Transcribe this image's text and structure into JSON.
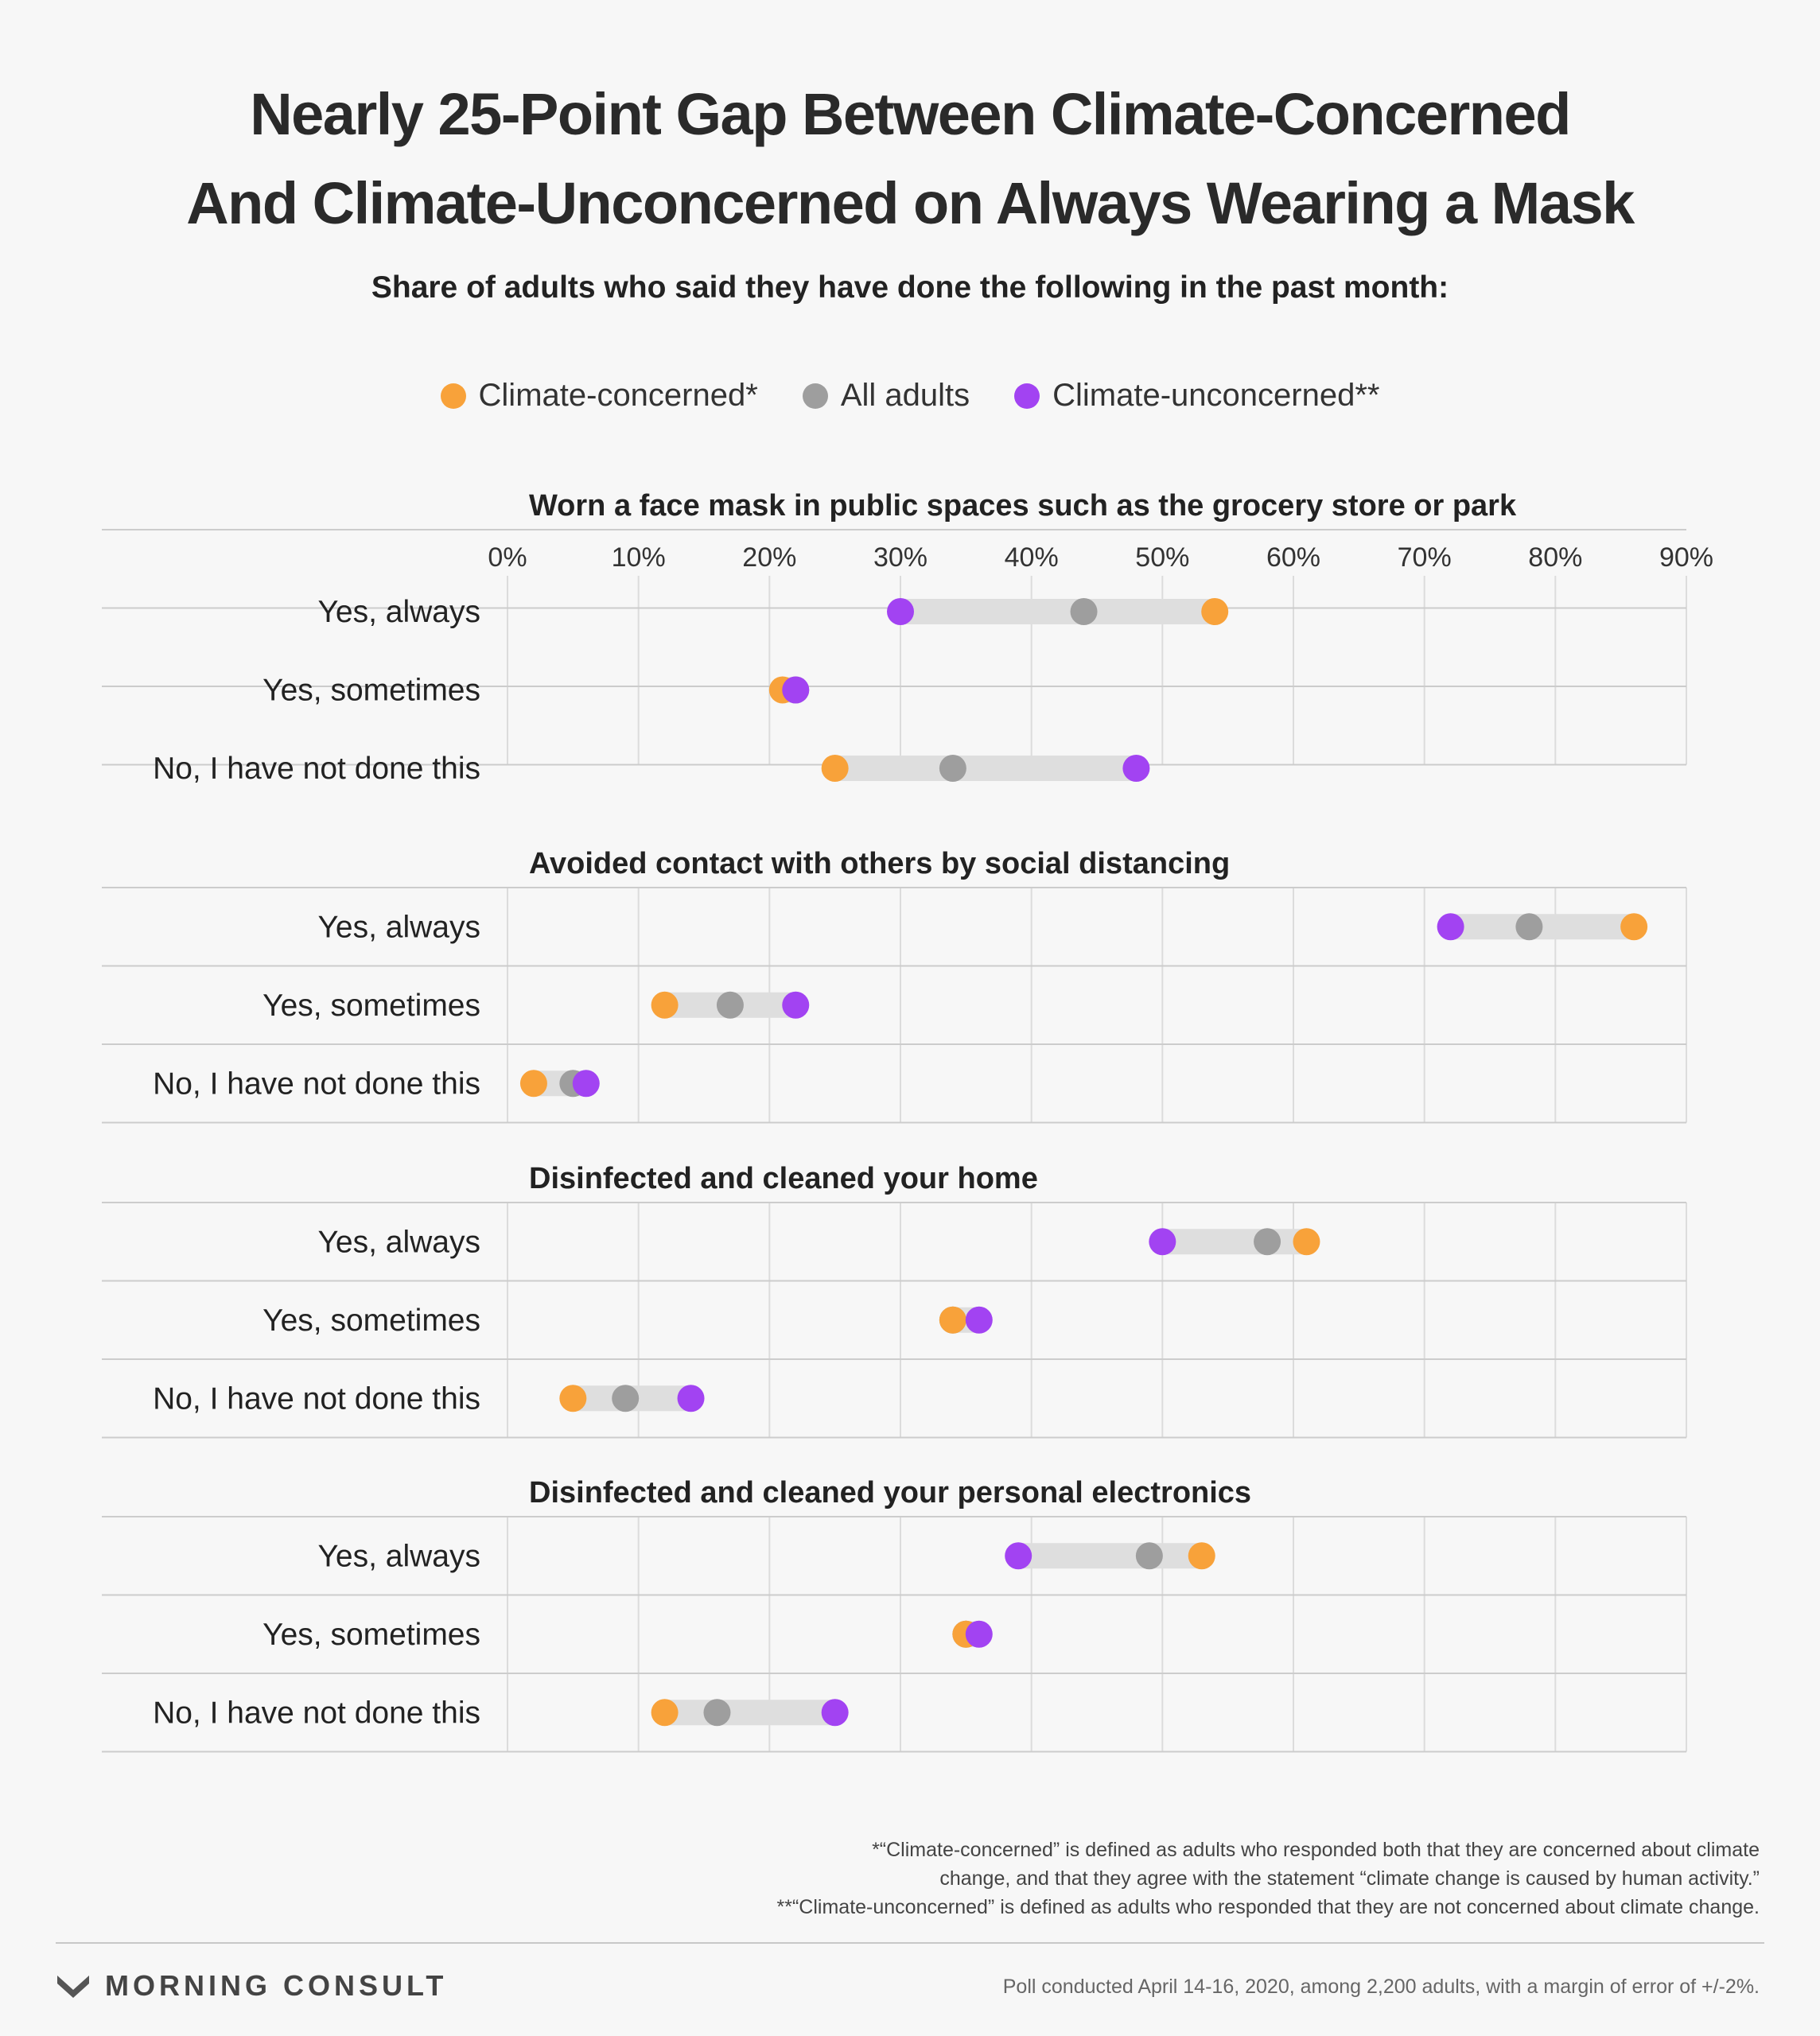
{
  "title_line1": "Nearly 25-Point Gap Between Climate-Concerned",
  "title_line2": "And Climate-Unconcerned on Always Wearing a Mask",
  "subtitle": "Share of adults who said they have done the following in the past month:",
  "legend": [
    {
      "label": "Climate-concerned*",
      "color": "#f8a23a"
    },
    {
      "label": "All adults",
      "color": "#9e9e9e"
    },
    {
      "label": "Climate-unconcerned**",
      "color": "#a243f2"
    }
  ],
  "chart_data": {
    "type": "dot-range",
    "x_ticks": [
      "0%",
      "10%",
      "20%",
      "30%",
      "40%",
      "50%",
      "60%",
      "70%",
      "80%",
      "90%"
    ],
    "xlim": [
      0,
      90
    ],
    "series_names": [
      "Climate-concerned*",
      "All adults",
      "Climate-unconcerned**"
    ],
    "colors": {
      "concerned": "#f8a23a",
      "all": "#9e9e9e",
      "unconcerned": "#a243f2"
    },
    "panels": [
      {
        "heading": "Worn a face mask in public spaces such as the grocery store or park",
        "rows": [
          {
            "label": "Yes, always",
            "concerned": 54,
            "all": 44,
            "unconcerned": 30
          },
          {
            "label": "Yes, sometimes",
            "concerned": 21,
            "all": 22,
            "unconcerned": 22
          },
          {
            "label": "No, I have not done this",
            "concerned": 25,
            "all": 34,
            "unconcerned": 48
          }
        ]
      },
      {
        "heading": "Avoided contact with others by social distancing",
        "rows": [
          {
            "label": "Yes, always",
            "concerned": 86,
            "all": 78,
            "unconcerned": 72
          },
          {
            "label": "Yes, sometimes",
            "concerned": 12,
            "all": 17,
            "unconcerned": 22
          },
          {
            "label": "No, I have not done this",
            "concerned": 2,
            "all": 5,
            "unconcerned": 6
          }
        ]
      },
      {
        "heading": "Disinfected and cleaned your home",
        "rows": [
          {
            "label": "Yes, always",
            "concerned": 61,
            "all": 58,
            "unconcerned": 50
          },
          {
            "label": "Yes, sometimes",
            "concerned": 34,
            "all": 34,
            "unconcerned": 36
          },
          {
            "label": "No, I have not done this",
            "concerned": 5,
            "all": 9,
            "unconcerned": 14
          }
        ]
      },
      {
        "heading": "Disinfected and cleaned your personal electronics",
        "rows": [
          {
            "label": "Yes, always",
            "concerned": 53,
            "all": 49,
            "unconcerned": 39
          },
          {
            "label": "Yes, sometimes",
            "concerned": 35,
            "all": 35,
            "unconcerned": 36
          },
          {
            "label": "No, I have not done this",
            "concerned": 12,
            "all": 16,
            "unconcerned": 25
          }
        ]
      }
    ]
  },
  "footnotes": [
    "*“Climate-concerned” is defined as adults who responded both that they are concerned about climate",
    "change, and that they agree with the statement “climate change is caused by human activity.”",
    "**“Climate-unconcerned” is defined as adults who responded that they are not concerned about climate change."
  ],
  "brand": "MORNING CONSULT",
  "poll_note": "Poll conducted April 14-16, 2020, among 2,200 adults, with a margin of error of +/-2%."
}
